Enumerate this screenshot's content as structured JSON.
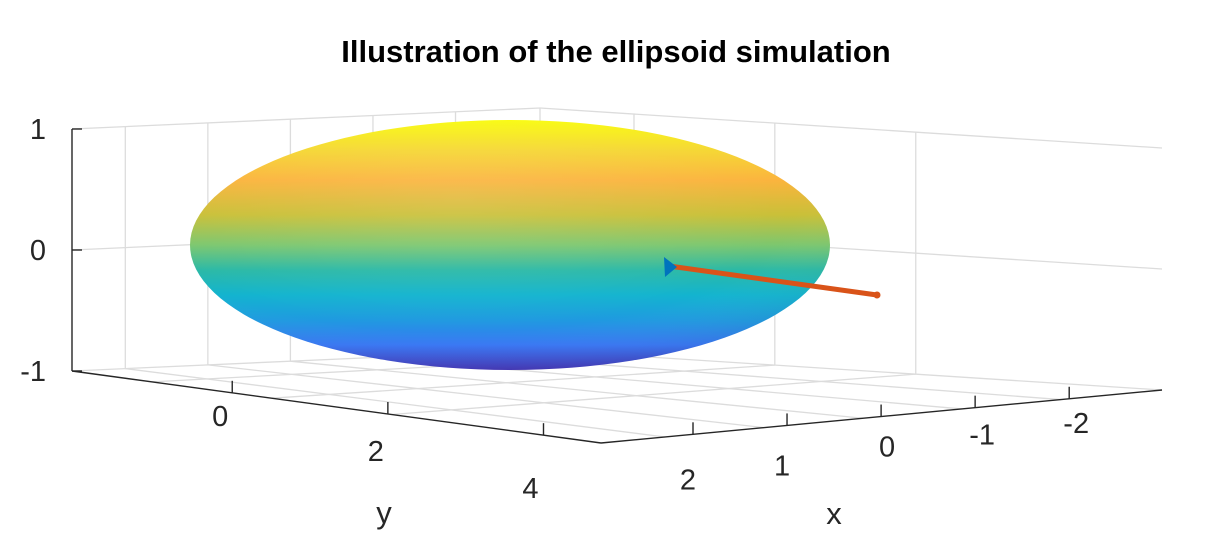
{
  "chart_data": {
    "type": "surface",
    "title": "Illustration of the ellipsoid simulation",
    "xlabel": "x",
    "ylabel": "y",
    "zlabel": "",
    "x_ticks": [
      "2",
      "1",
      "0",
      "-1",
      "-2"
    ],
    "y_ticks": [
      "0",
      "2",
      "4"
    ],
    "z_ticks": [
      "1",
      "0",
      "-1"
    ],
    "xlim": [
      -2.5,
      2.5
    ],
    "ylim": [
      -1,
      5
    ],
    "zlim": [
      -1,
      1
    ],
    "grid": true,
    "colormap": "parula",
    "ellipsoid": {
      "center": [
        0,
        1.5,
        0
      ],
      "semi_axes": [
        1.5,
        3,
        1
      ]
    },
    "vector": {
      "color": "#d95319",
      "marker_color": "#0072bd"
    },
    "colors": {
      "vector": "#d95319",
      "marker": "#0072bd",
      "grid": "#dcdcdc",
      "axis": "#262626"
    }
  }
}
